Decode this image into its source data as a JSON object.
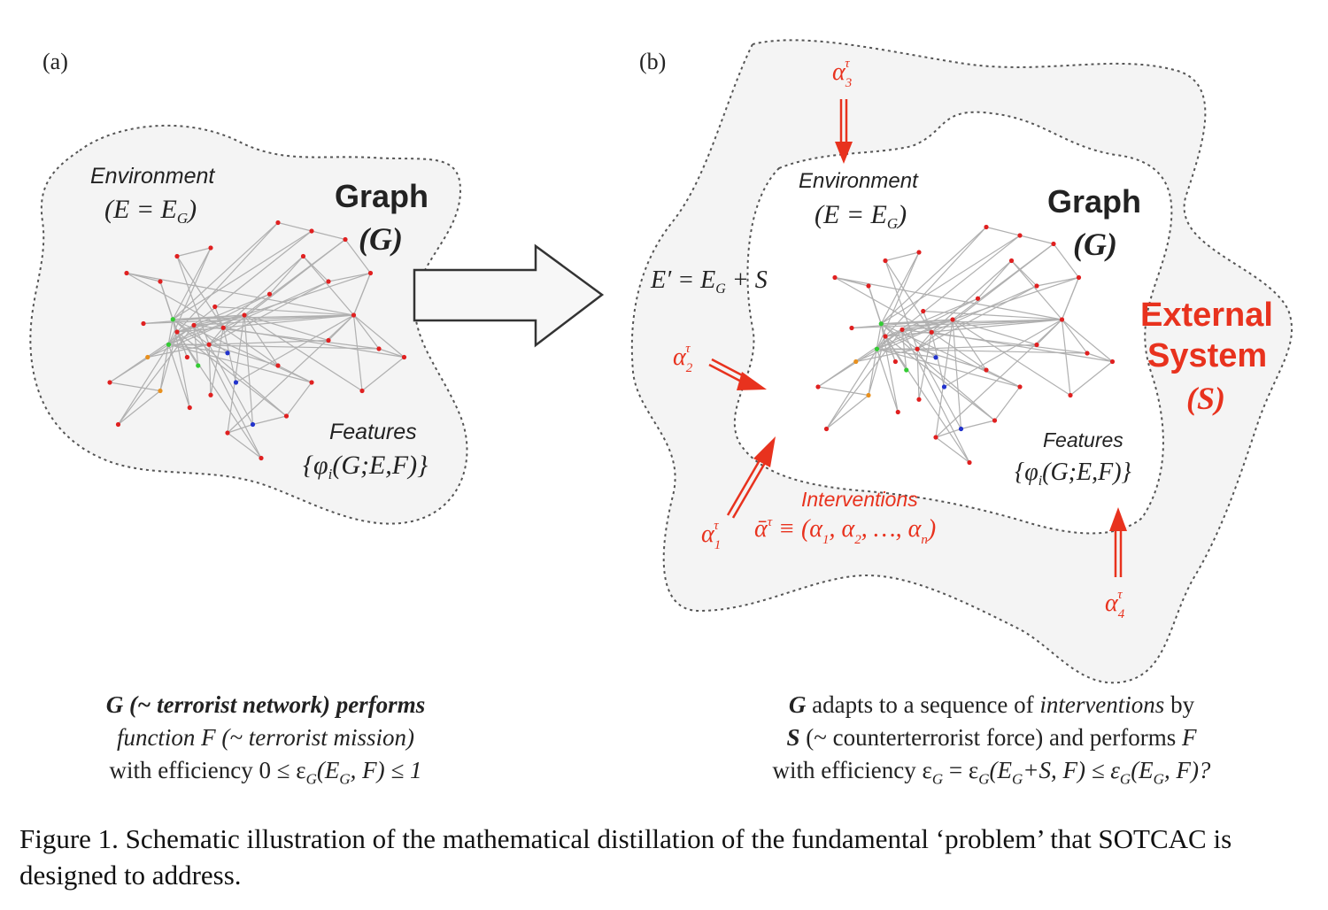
{
  "panel_a": {
    "tag": "(a)",
    "environment_label": "Environment",
    "environment_formula": "(E = E",
    "environment_sub": "G",
    "environment_close": ")",
    "graph_title": "Graph",
    "graph_symbol": "(G)",
    "features_label": "Features",
    "features_formula": "{φ",
    "features_sub": "i",
    "features_args": "(G;E,F)}",
    "caption_lines": [
      "G (~ terrorist network) performs",
      "function F (~ terrorist mission)",
      "with efficiency 0 ≤ ε",
      "G",
      "(E",
      "G",
      ", F) ≤ 1"
    ]
  },
  "panel_b": {
    "tag": "(b)",
    "environment_label": "Environment",
    "environment_formula": "(E = E",
    "environment_sub": "G",
    "environment_close": ")",
    "graph_title": "Graph",
    "graph_symbol": "(G)",
    "features_label": "Features",
    "features_formula": "{φ",
    "features_sub": "i",
    "features_args": "(G;E,F)}",
    "external_env_formula": "E′ = E",
    "external_env_sub": "G",
    "external_env_tail": " + S",
    "external_system_line1": "External",
    "external_system_line2": "System",
    "external_system_symbol": "(S)",
    "interventions_label": "Interventions",
    "interventions_formula": "ᾱ",
    "interventions_sup": "τ",
    "interventions_eq": " ≡ (α",
    "interventions_terms": "τ, α, …, α",
    "alpha": "α",
    "tau": "τ",
    "alpha_indices": [
      "1",
      "2",
      "3",
      "4"
    ],
    "alpha_n": "n",
    "caption_line1_a": "G",
    "caption_line1_b": " adapts to a sequence of ",
    "caption_line1_c": "interventions",
    "caption_line1_d": " by",
    "caption_line2_a": "S",
    "caption_line2_b": " (~ counterterrorist force) and performs ",
    "caption_line2_c": "F",
    "caption_line3": "with efficiency ε",
    "caption_line3_rest": " = ε",
    "caption_line3_rest2": "(E",
    "caption_line3_rest3": "+S, F) ≤ ε",
    "caption_line3_rest4": "(E",
    "caption_line3_rest5": ", F)?"
  },
  "figure_caption": "Figure 1.    Schematic illustration of the mathematical distillation of the fundamental ‘problem’ that SOTCAC is designed to address.",
  "colors": {
    "accent_red": "#e8321e",
    "node_red": "#e02020",
    "node_green": "#33cc33",
    "node_blue": "#2233cc",
    "node_orange": "#e8901e",
    "edge_gray": "#b0b0b0",
    "blob_fill": "#f4f4f4",
    "outline": "#555555"
  }
}
